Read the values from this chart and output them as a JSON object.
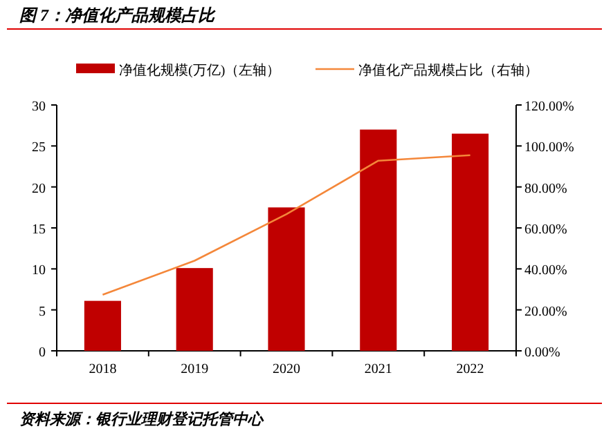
{
  "chart_data": {
    "type": "bar",
    "title": "图 7：净值化产品规模占比",
    "categories": [
      "2018",
      "2019",
      "2020",
      "2021",
      "2022"
    ],
    "series": [
      {
        "name": "净值化规模(万亿)（左轴）",
        "color": "#c00000",
        "values": [
          6.1,
          10.1,
          17.5,
          27.0,
          26.5
        ]
      },
      {
        "name": "净值化产品规模占比（右轴）",
        "type": "line",
        "axis": "y2",
        "color": "#f4873a",
        "values": [
          27.4,
          44.0,
          66.7,
          92.8,
          95.5
        ]
      }
    ],
    "ylim": [
      0,
      30
    ],
    "yticks": [
      0,
      5,
      10,
      15,
      20,
      25,
      30
    ],
    "y2lim": [
      0,
      120
    ],
    "y2ticks": [
      {
        "value": 0,
        "label": "0.00%"
      },
      {
        "value": 20,
        "label": "20.00%"
      },
      {
        "value": 40,
        "label": "40.00%"
      },
      {
        "value": 60,
        "label": "60.00%"
      },
      {
        "value": 80,
        "label": "80.00%"
      },
      {
        "value": 100,
        "label": "100.00%"
      },
      {
        "value": 120,
        "label": "120.00%"
      }
    ],
    "legend": "top",
    "grid": false,
    "annotations": [
      "资料来源：银行业理财登记托管中心"
    ]
  }
}
